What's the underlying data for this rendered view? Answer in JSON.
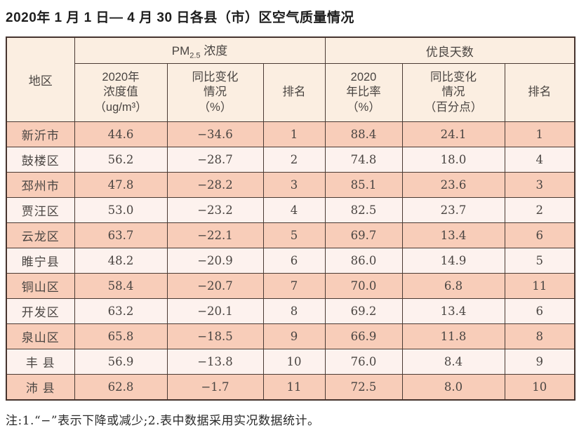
{
  "title": "2020年 1 月 1 日— 4 月 30 日各县（市）区空气质量情况",
  "table": {
    "header": {
      "region": "地区",
      "pm_group": {
        "prefix": "PM",
        "sub": "2.5",
        "suffix": " 浓度"
      },
      "pm_cols": [
        "2020年\n浓度值\n（ug/m³）",
        "同比变化\n情况\n（%）",
        "排名"
      ],
      "days_group": "优良天数",
      "days_cols": [
        "2020\n年比率\n（%）",
        "同比变化\n情况\n（百分点）",
        "排名"
      ]
    },
    "rows": [
      {
        "region": "新沂市",
        "pm_value": "44.6",
        "pm_change": "−34.6",
        "pm_rank": "1",
        "days_ratio": "88.4",
        "days_change": "24.1",
        "days_rank": "1"
      },
      {
        "region": "鼓楼区",
        "pm_value": "56.2",
        "pm_change": "−28.7",
        "pm_rank": "2",
        "days_ratio": "74.8",
        "days_change": "18.0",
        "days_rank": "4"
      },
      {
        "region": "邳州市",
        "pm_value": "47.8",
        "pm_change": "−28.2",
        "pm_rank": "3",
        "days_ratio": "85.1",
        "days_change": "23.6",
        "days_rank": "3"
      },
      {
        "region": "贾汪区",
        "pm_value": "53.0",
        "pm_change": "−23.2",
        "pm_rank": "4",
        "days_ratio": "82.5",
        "days_change": "23.7",
        "days_rank": "2"
      },
      {
        "region": "云龙区",
        "pm_value": "63.7",
        "pm_change": "−22.1",
        "pm_rank": "5",
        "days_ratio": "69.7",
        "days_change": "13.4",
        "days_rank": "6"
      },
      {
        "region": "睢宁县",
        "pm_value": "48.2",
        "pm_change": "−20.9",
        "pm_rank": "6",
        "days_ratio": "86.0",
        "days_change": "14.9",
        "days_rank": "5"
      },
      {
        "region": "铜山区",
        "pm_value": "58.4",
        "pm_change": "−20.7",
        "pm_rank": "7",
        "days_ratio": "70.0",
        "days_change": "6.8",
        "days_rank": "11"
      },
      {
        "region": "开发区",
        "pm_value": "63.2",
        "pm_change": "−20.1",
        "pm_rank": "8",
        "days_ratio": "69.2",
        "days_change": "13.4",
        "days_rank": "6"
      },
      {
        "region": "泉山区",
        "pm_value": "65.8",
        "pm_change": "−18.5",
        "pm_rank": "9",
        "days_ratio": "66.9",
        "days_change": "11.8",
        "days_rank": "8"
      },
      {
        "region": "丰 县",
        "pm_value": "56.9",
        "pm_change": "−13.8",
        "pm_rank": "10",
        "days_ratio": "76.0",
        "days_change": "8.4",
        "days_rank": "9"
      },
      {
        "region": "沛 县",
        "pm_value": "62.8",
        "pm_change": "−1.7",
        "pm_rank": "11",
        "days_ratio": "72.5",
        "days_change": "8.0",
        "days_rank": "10"
      }
    ]
  },
  "footnote": "注:1.“−”表示下降或减少;2.表中数据采用实况数据统计。",
  "colors": {
    "row_odd": "#f8cdb9",
    "row_even": "#fdf2ee",
    "header_bg": "#fbeee1",
    "border": "#4a3a33"
  }
}
